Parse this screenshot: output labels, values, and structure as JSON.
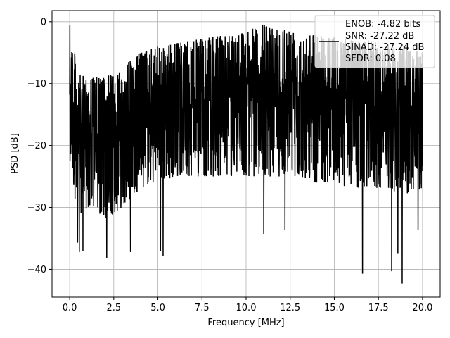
{
  "chart_data": {
    "type": "line",
    "title": "",
    "xlabel": "Frequency [MHz]",
    "ylabel": "PSD [dB]",
    "xlim": [
      -1.0,
      21.0
    ],
    "ylim": [
      -44.5,
      1.8
    ],
    "xticks": [
      0.0,
      2.5,
      5.0,
      7.5,
      10.0,
      12.5,
      15.0,
      17.5,
      20.0
    ],
    "xtick_labels": [
      "0.0",
      "2.5",
      "5.0",
      "7.5",
      "10.0",
      "12.5",
      "15.0",
      "17.5",
      "20.0"
    ],
    "yticks": [
      0,
      -10,
      -20,
      -30,
      -40
    ],
    "ytick_labels": [
      "0",
      "−10",
      "−20",
      "−30",
      "−40"
    ],
    "grid": true,
    "legend_position": "upper-right",
    "legend_lines": [
      "ENOB: -4.82 bits",
      "SNR: -27.22 dB",
      "SINAD: -27.24 dB",
      "SFDR: 0.08"
    ],
    "line_color": "#000000",
    "series": [
      {
        "x_range": [
          0.0,
          20.0
        ],
        "description_values": {
          "peak_near_zero": -0.6,
          "min_value": -42.3,
          "upper_envelope": [
            [
              0.0,
              -0.6
            ],
            [
              0.5,
              -8.5
            ],
            [
              1.0,
              -9.0
            ],
            [
              2.0,
              -9.0
            ],
            [
              3.0,
              -7.5
            ],
            [
              3.5,
              -6.0
            ],
            [
              4.0,
              -5.0
            ],
            [
              5.0,
              -4.0
            ],
            [
              6.0,
              -3.5
            ],
            [
              7.0,
              -3.0
            ],
            [
              8.0,
              -2.5
            ],
            [
              9.0,
              -2.0
            ],
            [
              10.0,
              -1.5
            ],
            [
              11.0,
              -0.5
            ],
            [
              12.0,
              -1.0
            ],
            [
              13.0,
              -1.5
            ],
            [
              14.0,
              -2.0
            ],
            [
              15.0,
              -2.5
            ],
            [
              16.0,
              -3.0
            ],
            [
              17.0,
              -3.0
            ],
            [
              18.0,
              -3.5
            ],
            [
              19.0,
              -4.0
            ],
            [
              20.0,
              -5.0
            ]
          ],
          "lower_envelope": [
            [
              0.0,
              -22.0
            ],
            [
              0.5,
              -33.0
            ],
            [
              1.0,
              -30.0
            ],
            [
              2.0,
              -32.0
            ],
            [
              3.0,
              -30.0
            ],
            [
              4.0,
              -27.0
            ],
            [
              5.0,
              -26.0
            ],
            [
              6.0,
              -25.0
            ],
            [
              7.0,
              -25.0
            ],
            [
              8.0,
              -25.0
            ],
            [
              9.0,
              -25.0
            ],
            [
              10.0,
              -25.0
            ],
            [
              11.0,
              -25.0
            ],
            [
              12.0,
              -25.0
            ],
            [
              13.0,
              -25.0
            ],
            [
              14.0,
              -26.0
            ],
            [
              15.0,
              -26.0
            ],
            [
              16.0,
              -27.0
            ],
            [
              17.0,
              -27.0
            ],
            [
              18.0,
              -27.0
            ],
            [
              19.0,
              -28.0
            ],
            [
              20.0,
              -27.0
            ]
          ],
          "deep_dips": [
            [
              0.45,
              -35.7
            ],
            [
              0.55,
              -37.2
            ],
            [
              0.75,
              -37.0
            ],
            [
              2.1,
              -38.2
            ],
            [
              3.45,
              -37.2
            ],
            [
              5.15,
              -37.0
            ],
            [
              5.3,
              -37.8
            ],
            [
              11.0,
              -34.3
            ],
            [
              12.2,
              -33.6
            ],
            [
              16.6,
              -40.7
            ],
            [
              18.25,
              -40.3
            ],
            [
              18.85,
              -42.3
            ],
            [
              18.6,
              -37.5
            ],
            [
              19.75,
              -33.7
            ]
          ]
        }
      }
    ]
  }
}
